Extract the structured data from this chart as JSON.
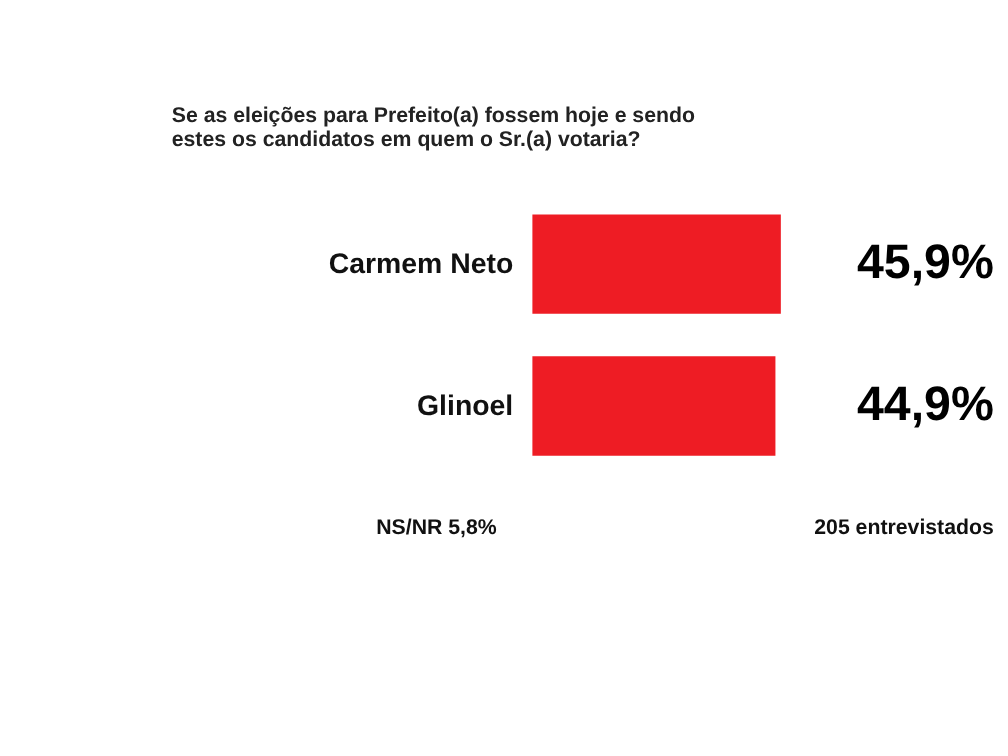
{
  "chart_data": {
    "type": "bar",
    "orientation": "horizontal",
    "title": "Se as eleições para Prefeito(a) fossem hoje e sendo estes os candidatos em quem o Sr.(a) votaria?",
    "categories": [
      "Carmem Neto",
      "Glinoel"
    ],
    "values": [
      45.9,
      44.9
    ],
    "value_labels": [
      "45,9%",
      "44,9%"
    ],
    "color": "#ee1c24",
    "annotations": [
      "NS/NR 5,8%",
      "205 entrevistados"
    ]
  }
}
